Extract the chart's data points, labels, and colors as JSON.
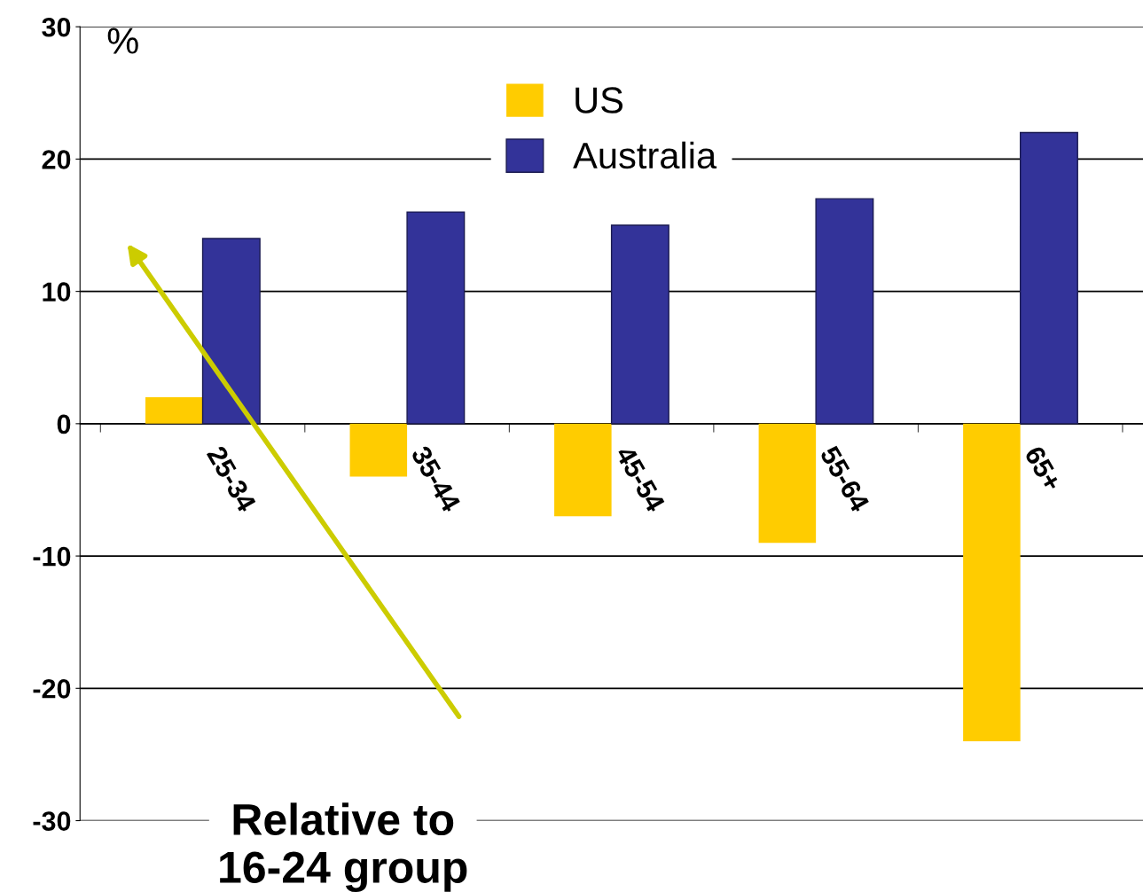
{
  "chart_data": {
    "type": "bar",
    "ylabel": "%",
    "categories": [
      "25-34",
      "35-44",
      "45-54",
      "55-64",
      "65+"
    ],
    "series": [
      {
        "name": "US",
        "color": "#ffcc00",
        "values": [
          2,
          -4,
          -7,
          -9,
          -24
        ]
      },
      {
        "name": "Australia",
        "color": "#333399",
        "values": [
          14,
          16,
          15,
          17,
          22
        ]
      }
    ],
    "ylim": [
      -30,
      30
    ],
    "yticks": [
      -30,
      -20,
      -10,
      0,
      10,
      20,
      30
    ],
    "grid": "y",
    "legend": "top",
    "annotations": [
      "Relative to\n16-24 group"
    ]
  }
}
